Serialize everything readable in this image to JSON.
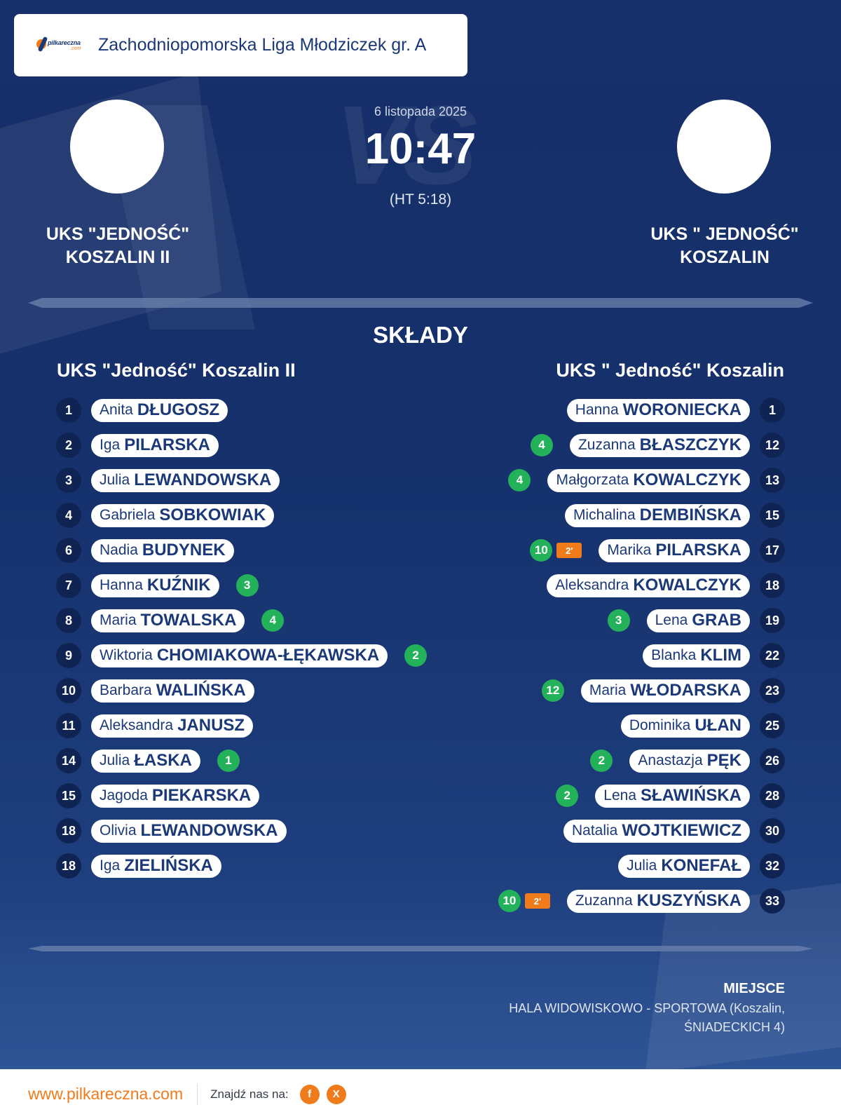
{
  "header": {
    "league": "Zachodniopomorska Liga Młodziczek gr. A",
    "logo_text": "pilkareczna",
    "logo_suffix": ".com"
  },
  "match": {
    "vs_watermark": "VS",
    "date": "6 listopada 2025",
    "score": "10:47",
    "halftime": "(HT 5:18)"
  },
  "home": {
    "title_line1": "UKS \"JEDNOŚĆ\"",
    "title_line2": "KOSZALIN II",
    "squad_name": "UKS \"Jedność\" Koszalin II"
  },
  "away": {
    "title_line1": "UKS \" JEDNOŚĆ\"",
    "title_line2": "KOSZALIN",
    "squad_name": "UKS \" Jedność\" Koszalin"
  },
  "lineups_title": "SKŁADY",
  "home_players": [
    {
      "num": "1",
      "first": "Anita",
      "last": "DŁUGOSZ",
      "goals": "",
      "penalty": ""
    },
    {
      "num": "2",
      "first": "Iga",
      "last": "PILARSKA",
      "goals": "",
      "penalty": ""
    },
    {
      "num": "3",
      "first": "Julia",
      "last": "LEWANDOWSKA",
      "goals": "",
      "penalty": ""
    },
    {
      "num": "4",
      "first": "Gabriela",
      "last": "SOBKOWIAK",
      "goals": "",
      "penalty": ""
    },
    {
      "num": "6",
      "first": "Nadia",
      "last": "BUDYNEK",
      "goals": "",
      "penalty": ""
    },
    {
      "num": "7",
      "first": "Hanna",
      "last": "KUŹNIK",
      "goals": "3",
      "penalty": ""
    },
    {
      "num": "8",
      "first": "Maria",
      "last": "TOWALSKA",
      "goals": "4",
      "penalty": ""
    },
    {
      "num": "9",
      "first": "Wiktoria",
      "last": "CHOMIAKOWA-ŁĘKAWSKA",
      "goals": "2",
      "penalty": ""
    },
    {
      "num": "10",
      "first": "Barbara",
      "last": "WALIŃSKA",
      "goals": "",
      "penalty": ""
    },
    {
      "num": "11",
      "first": "Aleksandra",
      "last": "JANUSZ",
      "goals": "",
      "penalty": ""
    },
    {
      "num": "14",
      "first": "Julia",
      "last": "ŁASKA",
      "goals": "1",
      "penalty": ""
    },
    {
      "num": "15",
      "first": "Jagoda",
      "last": "PIEKARSKA",
      "goals": "",
      "penalty": ""
    },
    {
      "num": "18",
      "first": "Olivia",
      "last": "LEWANDOWSKA",
      "goals": "",
      "penalty": ""
    },
    {
      "num": "18",
      "first": "Iga",
      "last": "ZIELIŃSKA",
      "goals": "",
      "penalty": ""
    }
  ],
  "away_players": [
    {
      "num": "1",
      "first": "Hanna",
      "last": "WORONIECKA",
      "goals": "",
      "penalty": ""
    },
    {
      "num": "12",
      "first": "Zuzanna",
      "last": "BŁASZCZYK",
      "goals": "4",
      "penalty": ""
    },
    {
      "num": "13",
      "first": "Małgorzata",
      "last": "KOWALCZYK",
      "goals": "4",
      "penalty": ""
    },
    {
      "num": "15",
      "first": "Michalina",
      "last": "DEMBIŃSKA",
      "goals": "",
      "penalty": ""
    },
    {
      "num": "17",
      "first": "Marika",
      "last": "PILARSKA",
      "goals": "10",
      "penalty": "2'"
    },
    {
      "num": "18",
      "first": "Aleksandra",
      "last": "KOWALCZYK",
      "goals": "",
      "penalty": ""
    },
    {
      "num": "19",
      "first": "Lena",
      "last": "GRAB",
      "goals": "3",
      "penalty": ""
    },
    {
      "num": "22",
      "first": "Blanka",
      "last": "KLIM",
      "goals": "",
      "penalty": ""
    },
    {
      "num": "23",
      "first": "Maria",
      "last": "WŁODARSKA",
      "goals": "12",
      "penalty": ""
    },
    {
      "num": "25",
      "first": "Dominika",
      "last": "UŁAN",
      "goals": "",
      "penalty": ""
    },
    {
      "num": "26",
      "first": "Anastazja",
      "last": "PĘK",
      "goals": "2",
      "penalty": ""
    },
    {
      "num": "28",
      "first": "Lena",
      "last": "SŁAWIŃSKA",
      "goals": "2",
      "penalty": ""
    },
    {
      "num": "30",
      "first": "Natalia",
      "last": "WOJTKIEWICZ",
      "goals": "",
      "penalty": ""
    },
    {
      "num": "32",
      "first": "Julia",
      "last": "KONEFAŁ",
      "goals": "",
      "penalty": ""
    },
    {
      "num": "33",
      "first": "Zuzanna",
      "last": "KUSZYŃSKA",
      "goals": "10",
      "penalty": "2'"
    }
  ],
  "venue": {
    "label": "MIEJSCE",
    "value": "HALA WIDOWISKOWO - SPORTOWA (Koszalin, ŚNIADECKICH 4)"
  },
  "footer": {
    "site": "www.pilkareczna.com",
    "find_us": "Znajdź nas na:",
    "facebook": "f",
    "x": "X"
  },
  "colors": {
    "background": "#172f6a",
    "accent": "#f07b1a",
    "goals": "#23b25a",
    "text_dark": "#1b3978"
  }
}
